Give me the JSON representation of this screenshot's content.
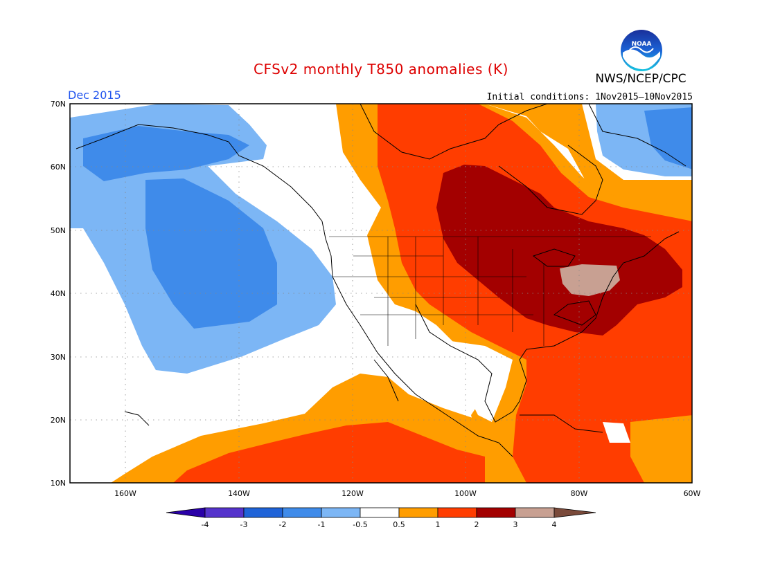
{
  "header": {
    "title": "CFSv2 monthly T850 anomalies (K)",
    "title_color": "#dd0000",
    "agency": "NWS/NCEP/CPC",
    "month": "Dec 2015",
    "month_color": "#2255ee",
    "initial_conditions": "Initial conditions: 1Nov2015—10Nov2015"
  },
  "logo": {
    "icon": "noaa-logo-icon",
    "text": "NOAA"
  },
  "map": {
    "projection": "lat-lon",
    "lon_range": [
      -172,
      -60
    ],
    "lat_range": [
      10,
      70
    ],
    "lat_labels": [
      "70N",
      "60N",
      "50N",
      "40N",
      "30N",
      "20N",
      "10N"
    ],
    "lon_labels": [
      "160W",
      "140W",
      "120W",
      "100W",
      "80W",
      "60W"
    ],
    "grid": "dotted",
    "color_levels": [
      {
        "range": "< -4",
        "color": "#2a00a8"
      },
      {
        "range": "-4 to -3",
        "color": "#5533cc"
      },
      {
        "range": "-3 to -2",
        "color": "#1f63d8"
      },
      {
        "range": "-2 to -1",
        "color": "#3f8bea"
      },
      {
        "range": "-1 to -0.5",
        "color": "#7cb6f5"
      },
      {
        "range": "-0.5 to 0.5",
        "color": "#ffffff"
      },
      {
        "range": "0.5 to 1",
        "color": "#ff9d00"
      },
      {
        "range": "1 to 2",
        "color": "#ff3d00"
      },
      {
        "range": "2 to 3",
        "color": "#a30000"
      },
      {
        "range": "3 to 4",
        "color": "#c8a092"
      },
      {
        "range": "> 4",
        "color": "#7a4a3a"
      }
    ]
  },
  "colorbar": {
    "labels": [
      "-4",
      "-3",
      "-2",
      "-1",
      "-0.5",
      "0.5",
      "1",
      "2",
      "3",
      "4"
    ]
  }
}
